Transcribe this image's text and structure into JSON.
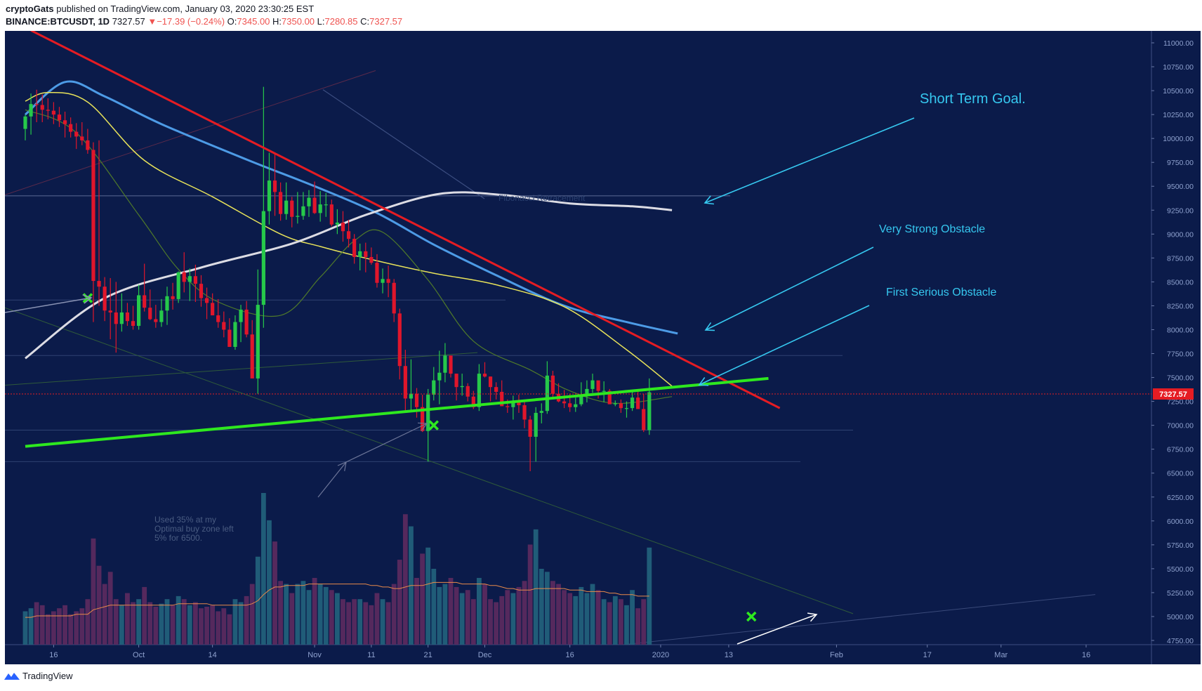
{
  "header": {
    "author": "cryptoGats",
    "published_text": "published on TradingView.com, January 03, 2020 23:30:25 EST",
    "symbol": "BINANCE:BTCUSDT, 1D",
    "last": "7327.57",
    "change_arrow": "▼",
    "change": "−17.39 (−0.24%)",
    "o_label": "O:",
    "o_value": "7345.00",
    "h_label": "H:",
    "h_value": "7350.00",
    "l_label": "L:",
    "l_value": "7280.85",
    "c_label": "C:",
    "c_value": "7327.57"
  },
  "footer": {
    "brand": "TradingView"
  },
  "colors": {
    "background": "#0b1b4a",
    "up": "#26c94a",
    "down": "#e0162b",
    "blue_ma": "#4d9be6",
    "yellow_ma": "#e8e35a",
    "green_ma": "#4f7a2a",
    "white_ma": "#dcdce4",
    "resistance": "#e51c23",
    "support": "#2ee81f",
    "annotation": "#36c8f0",
    "price_tag": "#e51c23"
  },
  "chart_data": {
    "type": "candlestick",
    "title": "BINANCE:BTCUSDT, 1D",
    "ylim": [
      4650,
      11150
    ],
    "y_ticks": [
      4750,
      5000,
      5250,
      5500,
      5750,
      6000,
      6250,
      6500,
      6750,
      7000,
      7250,
      7500,
      7750,
      8000,
      8250,
      8500,
      8750,
      9000,
      9250,
      9500,
      9750,
      10000,
      10250,
      10500,
      10750,
      11000
    ],
    "last_price": 7327.57,
    "last_price_label": "7327.57",
    "x_range": [
      "2019-09-11",
      "2020-03-20"
    ],
    "x_ticks": [
      {
        "date": "2019-09-16",
        "label": "16"
      },
      {
        "date": "2019-10-01",
        "label": "Oct"
      },
      {
        "date": "2019-10-14",
        "label": "14"
      },
      {
        "date": "2019-11-01",
        "label": "Nov"
      },
      {
        "date": "2019-11-11",
        "label": "11"
      },
      {
        "date": "2019-11-21",
        "label": "21"
      },
      {
        "date": "2019-12-01",
        "label": "Dec"
      },
      {
        "date": "2019-12-16",
        "label": "16"
      },
      {
        "date": "2020-01-01",
        "label": "2020"
      },
      {
        "date": "2020-01-13",
        "label": "13"
      },
      {
        "date": "2020-02-01",
        "label": "Feb"
      },
      {
        "date": "2020-02-17",
        "label": "17"
      },
      {
        "date": "2020-03-01",
        "label": "Mar"
      },
      {
        "date": "2020-03-16",
        "label": "16"
      }
    ],
    "candles": {
      "start_date": "2019-09-11",
      "open": [
        10100,
        10230,
        10360,
        10350,
        10300,
        10290,
        10250,
        10190,
        10150,
        10070,
        10020,
        9980,
        9880,
        8510,
        8450,
        8200,
        8180,
        8060,
        8180,
        8090,
        8040,
        8360,
        8230,
        8110,
        8080,
        8200,
        8350,
        8320,
        8600,
        8500,
        8560,
        8480,
        8330,
        8280,
        8150,
        8080,
        8000,
        7820,
        8080,
        8210,
        7950,
        7490,
        8260,
        9240,
        9560,
        9440,
        9210,
        9350,
        9180,
        9190,
        9290,
        9380,
        9220,
        9310,
        9310,
        9100,
        9120,
        9030,
        8950,
        8760,
        8820,
        8760,
        8700,
        8490,
        8530,
        8490,
        8170,
        7620,
        7280,
        7330,
        7190,
        6940,
        7320,
        7470,
        7550,
        7730,
        7540,
        7400,
        7410,
        7300,
        7190,
        7540,
        7510,
        7400,
        7350,
        7200,
        7190,
        7250,
        7210,
        7060,
        6880,
        7130,
        7150,
        7520,
        7330,
        7250,
        7230,
        7190,
        7220,
        7320,
        7380,
        7470,
        7360,
        7360,
        7220,
        7230,
        7180,
        7180,
        7290,
        7170,
        6950
      ],
      "high": [
        10250,
        10470,
        10510,
        10460,
        10420,
        10380,
        10330,
        10280,
        10220,
        10160,
        10170,
        10100,
        9960,
        9980,
        8550,
        8540,
        8500,
        8380,
        8280,
        8250,
        8470,
        8690,
        8420,
        8260,
        8320,
        8450,
        8490,
        8610,
        8810,
        8640,
        8680,
        8570,
        8440,
        8380,
        8320,
        8190,
        8120,
        8150,
        8260,
        8300,
        8100,
        8630,
        10540,
        9850,
        9840,
        9540,
        9540,
        9390,
        9440,
        9440,
        9460,
        9550,
        9450,
        9430,
        9360,
        9260,
        9240,
        9150,
        9000,
        8900,
        8910,
        8860,
        8790,
        8640,
        8670,
        8530,
        8220,
        7790,
        7690,
        7390,
        7320,
        7380,
        7610,
        7780,
        7860,
        7710,
        7540,
        7540,
        7440,
        7360,
        7640,
        7660,
        7510,
        7450,
        7470,
        7270,
        7310,
        7320,
        7260,
        7100,
        7190,
        7230,
        7670,
        7570,
        7440,
        7370,
        7330,
        7290,
        7450,
        7470,
        7540,
        7460,
        7460,
        7380,
        7260,
        7270,
        7250,
        7350,
        7350,
        7330,
        7490
      ],
      "low": [
        9980,
        10040,
        10170,
        10170,
        10200,
        10150,
        10120,
        10010,
        10010,
        9890,
        9930,
        9840,
        8080,
        8250,
        8090,
        7900,
        7760,
        7980,
        8040,
        8000,
        8000,
        8190,
        8100,
        8020,
        8030,
        8050,
        8210,
        8280,
        8390,
        8300,
        8290,
        8240,
        8110,
        8150,
        8020,
        7920,
        7850,
        7790,
        7870,
        7920,
        7640,
        7330,
        8020,
        9100,
        9190,
        9140,
        9150,
        9070,
        9110,
        9150,
        9180,
        9210,
        9130,
        9180,
        9080,
        9000,
        8920,
        8860,
        8690,
        8620,
        8600,
        8680,
        8440,
        8380,
        8340,
        8080,
        7480,
        7150,
        7150,
        7080,
        6930,
        6620,
        7260,
        7220,
        7450,
        7500,
        7260,
        7310,
        7250,
        7170,
        7150,
        7500,
        7250,
        7270,
        7200,
        7130,
        7060,
        7130,
        6970,
        6520,
        6620,
        7020,
        7120,
        7270,
        7240,
        7180,
        7140,
        7140,
        7200,
        7240,
        7340,
        7280,
        7240,
        7250,
        7200,
        7130,
        7080,
        7150,
        7170,
        6930,
        6900
      ],
      "close": [
        10230,
        10360,
        10350,
        10300,
        10290,
        10250,
        10190,
        10150,
        10070,
        10020,
        9980,
        9880,
        8510,
        8450,
        8200,
        8180,
        8060,
        8180,
        8090,
        8040,
        8360,
        8230,
        8110,
        8080,
        8200,
        8350,
        8320,
        8600,
        8500,
        8560,
        8480,
        8330,
        8280,
        8150,
        8080,
        8000,
        7820,
        8080,
        8210,
        7950,
        7490,
        8260,
        9240,
        9560,
        9440,
        9210,
        9350,
        9180,
        9190,
        9290,
        9380,
        9220,
        9310,
        9310,
        9100,
        9120,
        9030,
        8950,
        8760,
        8820,
        8760,
        8700,
        8490,
        8530,
        8490,
        8170,
        7620,
        7280,
        7330,
        7190,
        6940,
        7320,
        7470,
        7550,
        7730,
        7540,
        7400,
        7410,
        7300,
        7190,
        7540,
        7510,
        7400,
        7350,
        7200,
        7190,
        7250,
        7210,
        7060,
        6880,
        7130,
        7150,
        7520,
        7330,
        7250,
        7230,
        7190,
        7220,
        7320,
        7380,
        7470,
        7360,
        7360,
        7220,
        7230,
        7180,
        7180,
        7290,
        7170,
        6950,
        7345
      ]
    },
    "volume": {
      "max": 100,
      "values": [
        22,
        24,
        28,
        26,
        20,
        22,
        24,
        26,
        20,
        22,
        24,
        30,
        70,
        52,
        40,
        48,
        30,
        26,
        34,
        28,
        30,
        38,
        28,
        25,
        27,
        30,
        26,
        32,
        30,
        26,
        28,
        24,
        25,
        26,
        22,
        24,
        20,
        30,
        28,
        32,
        40,
        58,
        100,
        82,
        68,
        42,
        40,
        34,
        40,
        42,
        36,
        44,
        40,
        38,
        36,
        34,
        30,
        28,
        30,
        30,
        28,
        26,
        34,
        30,
        28,
        40,
        56,
        86,
        78,
        44,
        60,
        64,
        50,
        38,
        40,
        44,
        38,
        34,
        36,
        30,
        44,
        40,
        30,
        28,
        32,
        36,
        34,
        38,
        42,
        66,
        76,
        50,
        48,
        42,
        40,
        36,
        34,
        32,
        38,
        34,
        40,
        36,
        30,
        28,
        32,
        30,
        26,
        36,
        24,
        30,
        64
      ],
      "ma": [
        18,
        18,
        19,
        19,
        19,
        19,
        19,
        19,
        19,
        20,
        20,
        20,
        23,
        24,
        25,
        26,
        26,
        26,
        26,
        26,
        26,
        26,
        26,
        26,
        26,
        26,
        26,
        27,
        27,
        27,
        27,
        27,
        27,
        26,
        26,
        26,
        26,
        26,
        26,
        26,
        27,
        29,
        33,
        36,
        38,
        38,
        39,
        39,
        39,
        39,
        40,
        40,
        40,
        40,
        40,
        40,
        40,
        40,
        40,
        40,
        40,
        39,
        39,
        38,
        38,
        37,
        37,
        38,
        39,
        39,
        39,
        40,
        41,
        41,
        41,
        41,
        41,
        40,
        40,
        40,
        40,
        40,
        39,
        39,
        38,
        37,
        37,
        36,
        36,
        36,
        37,
        37,
        37,
        37,
        37,
        37,
        36,
        36,
        36,
        35,
        35,
        35,
        35,
        34,
        34,
        33,
        33,
        33,
        32,
        32,
        32
      ]
    },
    "moving_averages": [
      {
        "color": "#4d9be6",
        "points": [
          [
            "2019-09-11",
            10250
          ],
          [
            "2019-09-18",
            10590
          ],
          [
            "2019-09-25",
            10440
          ],
          [
            "2019-10-05",
            10150
          ],
          [
            "2019-10-20",
            9780
          ],
          [
            "2019-11-01",
            9500
          ],
          [
            "2019-11-12",
            9220
          ],
          [
            "2019-11-22",
            8890
          ],
          [
            "2019-12-03",
            8570
          ],
          [
            "2019-12-15",
            8250
          ],
          [
            "2019-12-26",
            8080
          ],
          [
            "2020-01-04",
            7960
          ]
        ]
      },
      {
        "color": "#e8e35a",
        "points": [
          [
            "2019-09-11",
            10390
          ],
          [
            "2019-09-15",
            10480
          ],
          [
            "2019-09-22",
            10380
          ],
          [
            "2019-10-02",
            9770
          ],
          [
            "2019-10-14",
            9390
          ],
          [
            "2019-10-26",
            9000
          ],
          [
            "2019-11-02",
            8870
          ],
          [
            "2019-11-12",
            8720
          ],
          [
            "2019-11-22",
            8590
          ],
          [
            "2019-12-03",
            8470
          ],
          [
            "2019-12-15",
            8240
          ],
          [
            "2019-12-26",
            7790
          ],
          [
            "2020-01-03",
            7410
          ]
        ]
      },
      {
        "color": "#4f7a2a",
        "points": [
          [
            "2019-09-11",
            10300
          ],
          [
            "2019-09-20",
            10060
          ],
          [
            "2019-10-01",
            9200
          ],
          [
            "2019-10-08",
            8630
          ],
          [
            "2019-10-15",
            8290
          ],
          [
            "2019-10-26",
            8150
          ],
          [
            "2019-11-02",
            8550
          ],
          [
            "2019-11-08",
            8930
          ],
          [
            "2019-11-13",
            9020
          ],
          [
            "2019-11-21",
            8520
          ],
          [
            "2019-11-29",
            7880
          ],
          [
            "2019-12-09",
            7580
          ],
          [
            "2019-12-16",
            7360
          ],
          [
            "2019-12-24",
            7230
          ],
          [
            "2020-01-03",
            7300
          ]
        ]
      },
      {
        "color": "#dcdce4",
        "points": [
          [
            "2019-09-11",
            7700
          ],
          [
            "2019-09-25",
            8330
          ],
          [
            "2019-10-12",
            8650
          ],
          [
            "2019-10-28",
            8900
          ],
          [
            "2019-11-10",
            9200
          ],
          [
            "2019-11-23",
            9420
          ],
          [
            "2019-12-04",
            9410
          ],
          [
            "2019-12-16",
            9320
          ],
          [
            "2019-12-27",
            9290
          ],
          [
            "2020-01-03",
            9250
          ]
        ]
      }
    ],
    "drawings": {
      "resistance": [
        [
          "2019-09-12",
          11130
        ],
        [
          "2020-01-22",
          7180
        ]
      ],
      "support": [
        [
          "2019-09-11",
          6780
        ],
        [
          "2020-01-20",
          7490
        ]
      ],
      "buy_markers": [
        [
          "2019-09-22",
          8330
        ],
        [
          "2019-11-22",
          7000
        ],
        [
          "2020-01-17",
          5000
        ]
      ]
    },
    "annotations": [
      {
        "text": "Short Term Goal.",
        "color": "#36c8f0"
      },
      {
        "text": "Very Strong Obstacle",
        "color": "#36c8f0"
      },
      {
        "text": "First Serious Obstacle",
        "color": "#36c8f0"
      },
      {
        "text": "Used 35% at my",
        "color": "#4a5c82"
      },
      {
        "text": "Optimal buy zone left",
        "color": "#4a5c82"
      },
      {
        "text": "5% for 6500.",
        "color": "#4a5c82"
      },
      {
        "text": "Fibonacci Retracement",
        "color": "#2a4070"
      }
    ]
  }
}
